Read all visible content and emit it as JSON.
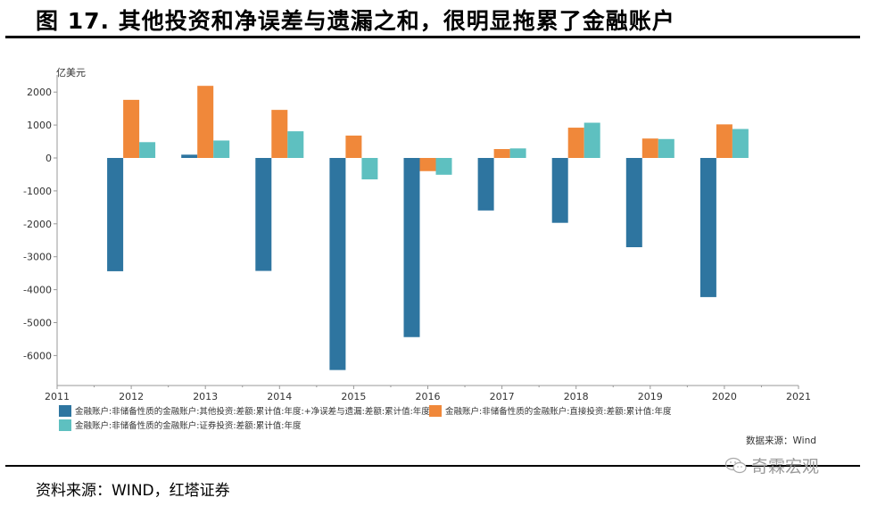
{
  "figure": {
    "title": "图 17. 其他投资和净误差与遗漏之和，很明显拖累了金融账户",
    "source": "资料来源：WIND，红塔证券",
    "watermark": "奇霖宏观",
    "watermark_icon": "wechat-icon"
  },
  "chart_data": {
    "type": "bar",
    "title": "",
    "ylabel": "亿美元",
    "xlabel": "",
    "ylim": [
      -7000,
      2500
    ],
    "yticks": [
      2000,
      1000,
      0,
      -1000,
      -2000,
      -3000,
      -4000,
      -5000,
      -6000
    ],
    "ytick_labels": [
      "2000",
      "1000",
      "0",
      "-1000",
      "-2000",
      "-3000",
      "-4000",
      "-5000",
      "-6000"
    ],
    "xlim": [
      2011,
      2021
    ],
    "xtick_labels": [
      "2011",
      "2012",
      "2013",
      "2014",
      "2015",
      "2016",
      "2017",
      "2018",
      "2019",
      "2020",
      "2021"
    ],
    "categories": [
      2012,
      2013,
      2014,
      2015,
      2016,
      2017,
      2018,
      2019,
      2020
    ],
    "series": [
      {
        "name": "金融账户:非储备性质的金融账户:其他投资:差额:累计值:年度:+净误差与遗漏:差额:累计值:年度",
        "color": "#2e75a0",
        "values": [
          -3440,
          100,
          -3430,
          -6440,
          -5440,
          -1595,
          -1970,
          -2710,
          -4225
        ]
      },
      {
        "name": "金融账户:非储备性质的金融账户:直接投资:差额:累计值:年度",
        "color": "#f0883a",
        "values": [
          1765,
          2190,
          1460,
          680,
          -400,
          270,
          920,
          590,
          1020
        ]
      },
      {
        "name": "金融账户:非储备性质的金融账户:证券投资:差额:累计值:年度",
        "color": "#5ec0c0",
        "values": [
          480,
          530,
          810,
          -650,
          -510,
          290,
          1070,
          575,
          880
        ]
      }
    ],
    "legend_position": "bottom",
    "grid": false,
    "data_source": "数据来源：Wind"
  }
}
